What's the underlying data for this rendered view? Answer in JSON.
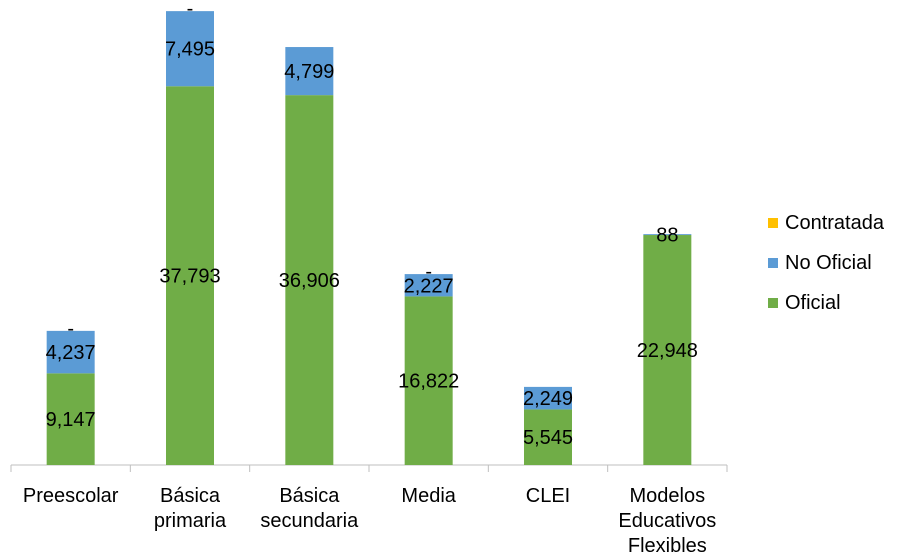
{
  "chart_data": {
    "type": "bar",
    "stacked": true,
    "categories": [
      [
        "Preescolar"
      ],
      [
        "Básica",
        "primaria"
      ],
      [
        "Básica",
        "secundaria"
      ],
      [
        "Media"
      ],
      [
        "CLEI"
      ],
      [
        "Modelos",
        "Educativos",
        "Flexibles"
      ]
    ],
    "series": [
      {
        "name": "Oficial",
        "color": "#70ad47",
        "values": [
          9147,
          37793,
          36906,
          16822,
          5545,
          22948
        ],
        "labels": [
          "9,147",
          "37,793",
          "36,906",
          "16,822",
          "5,545",
          "22,948"
        ]
      },
      {
        "name": "No Oficial",
        "color": "#5b9bd5",
        "values": [
          4237,
          7495,
          4799,
          2227,
          2249,
          88
        ],
        "labels": [
          "4,237",
          "7,495",
          "4,799",
          "2,227",
          "2,249",
          "88"
        ]
      },
      {
        "name": "Contratada",
        "color": "#ffc000",
        "values": [
          0,
          0,
          0,
          0,
          null,
          null
        ],
        "labels": [
          "-",
          "-",
          "",
          "-",
          "",
          ""
        ]
      }
    ],
    "legend": {
      "position": "right",
      "order": [
        "Contratada",
        "No Oficial",
        "Oficial"
      ]
    },
    "ylim": [
      0,
      46000
    ],
    "grid": false
  }
}
